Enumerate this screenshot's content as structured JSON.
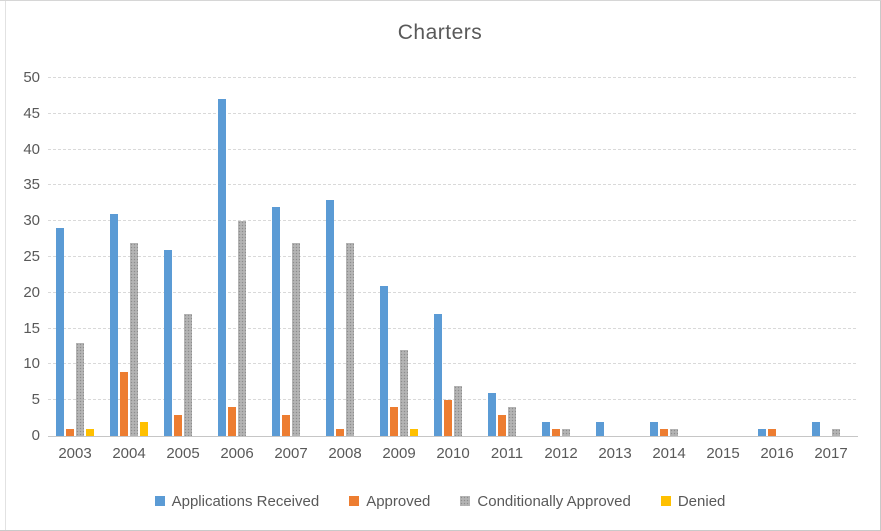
{
  "chart_data": {
    "type": "bar",
    "title": "Charters",
    "categories": [
      "2003",
      "2004",
      "2005",
      "2006",
      "2007",
      "2008",
      "2009",
      "2010",
      "2011",
      "2012",
      "2013",
      "2014",
      "2015",
      "2016",
      "2017"
    ],
    "series": [
      {
        "name": "Applications Received",
        "color": "#5B9BD5",
        "patterned": false,
        "values": [
          29,
          31,
          26,
          47,
          32,
          33,
          21,
          17,
          6,
          2,
          2,
          2,
          0,
          1,
          2
        ]
      },
      {
        "name": "Approved",
        "color": "#ED7D31",
        "patterned": false,
        "values": [
          1,
          9,
          3,
          4,
          3,
          1,
          4,
          5,
          3,
          1,
          0,
          1,
          0,
          1,
          0
        ]
      },
      {
        "name": "Conditionally Approved",
        "color": "#A5A5A5",
        "patterned": true,
        "values": [
          13,
          27,
          17,
          30,
          27,
          27,
          12,
          7,
          4,
          1,
          0,
          1,
          0,
          0,
          1
        ]
      },
      {
        "name": "Denied",
        "color": "#FFC000",
        "patterned": false,
        "values": [
          1,
          2,
          0,
          0,
          0,
          0,
          1,
          0,
          0,
          0,
          0,
          0,
          0,
          0,
          0
        ]
      }
    ],
    "xlabel": "",
    "ylabel": "",
    "ylim": [
      0,
      50
    ],
    "yticks": [
      0,
      5,
      10,
      15,
      20,
      25,
      30,
      35,
      40,
      45,
      50
    ],
    "grid": true,
    "gridline_color": "#d9d9d9",
    "axis_text_color": "#595959",
    "legend_position": "bottom"
  }
}
